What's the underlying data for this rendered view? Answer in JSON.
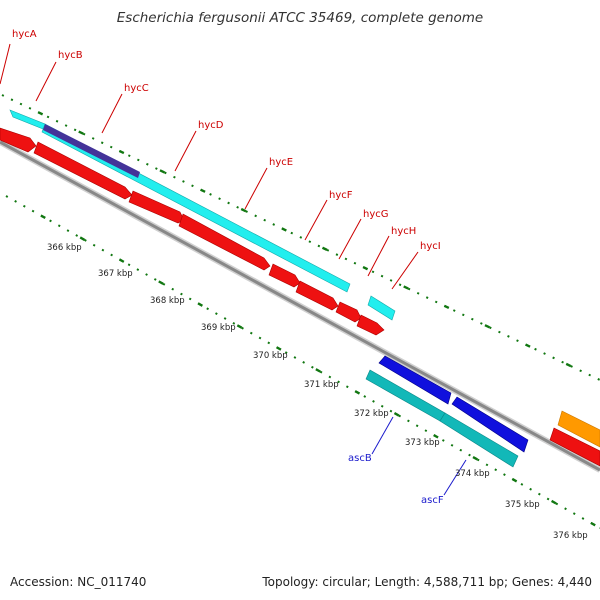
{
  "title": "Escherichia fergusonii ATCC 35469, complete genome",
  "footer": {
    "accession": "Accession: NC_011740",
    "summary": "Topology: circular; Length: 4,588,711 bp; Genes: 4,440"
  },
  "genes_top": [
    {
      "name": "hycA"
    },
    {
      "name": "hycB"
    },
    {
      "name": "hycC"
    },
    {
      "name": "hycD"
    },
    {
      "name": "hycE"
    },
    {
      "name": "hycF"
    },
    {
      "name": "hycG"
    },
    {
      "name": "hycH"
    },
    {
      "name": "hycI"
    }
  ],
  "genes_bottom": [
    {
      "name": "ascB"
    },
    {
      "name": "ascF"
    }
  ],
  "kbp_labels": [
    "366 kbp",
    "367 kbp",
    "368 kbp",
    "369 kbp",
    "370 kbp",
    "371 kbp",
    "372 kbp",
    "373 kbp",
    "374 kbp",
    "375 kbp",
    "376 kbp"
  ],
  "colors": {
    "cds": "#ee1111",
    "gene_cyan": "#22eeee",
    "gene_teal": "#12b8b8",
    "reverse_cds": "#1010dd",
    "purple": "#443399",
    "orange": "#ff9900",
    "backbone": "#888888",
    "ticks": "#117711",
    "label_red": "#cc0000",
    "label_blue": "#1a1acc"
  }
}
